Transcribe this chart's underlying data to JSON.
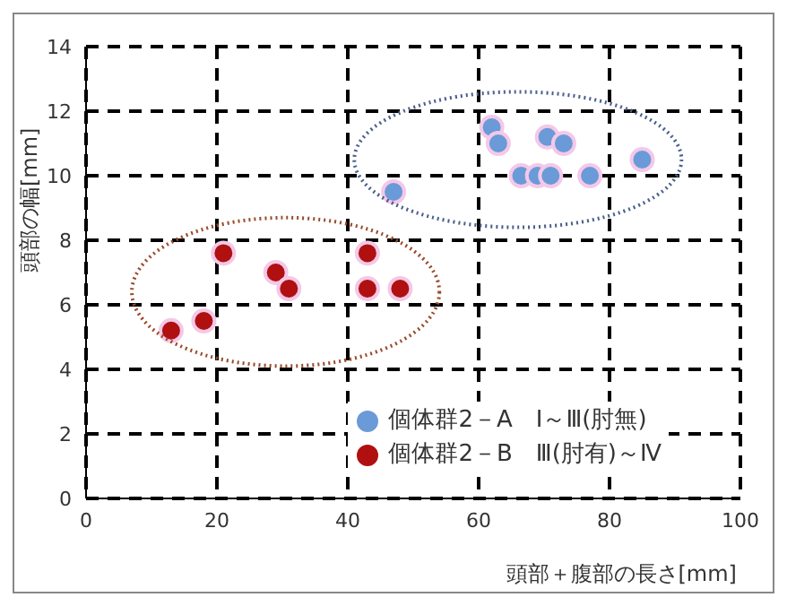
{
  "chart_data": {
    "type": "scatter",
    "xlabel": "頭部＋腹部の長さ[mm]",
    "ylabel": "頭部の幅[mm]",
    "xlim": [
      0,
      100
    ],
    "xticks": [
      0,
      20,
      40,
      60,
      80,
      100
    ],
    "ylim": [
      0,
      14
    ],
    "yticks": [
      0,
      2,
      4,
      6,
      8,
      10,
      12,
      14
    ],
    "grid": true,
    "legend": "bottom right",
    "marker": "circle",
    "series": [
      {
        "name": "個体群2－A　Ⅰ～Ⅲ(肘無)",
        "color": "#6a9ad8",
        "x": [
          47,
          62,
          63,
          66.5,
          69,
          71,
          70.5,
          73,
          77,
          85
        ],
        "values": [
          9.5,
          11.5,
          11,
          10,
          10,
          10,
          11.2,
          11,
          10,
          10.5
        ]
      },
      {
        "name": "個体群2－B　Ⅲ(肘有)～Ⅳ",
        "color": "#b01010",
        "x": [
          13,
          18,
          21,
          29,
          31,
          43,
          43,
          48
        ],
        "values": [
          5.2,
          5.5,
          7.6,
          7,
          6.5,
          7.6,
          6.5,
          6.5
        ]
      }
    ]
  }
}
